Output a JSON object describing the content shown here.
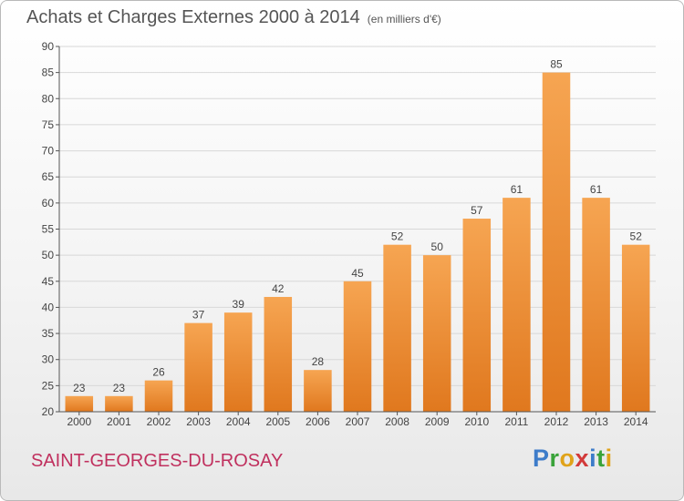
{
  "header": {
    "title": "Achats et Charges Externes 2000 à 2014",
    "unit": "(en milliers d'€)"
  },
  "footer": {
    "place": "SAINT-GEORGES-DU-ROSAY"
  },
  "logo": {
    "text": "Proxiti",
    "letters": [
      {
        "ch": "P",
        "color": "#3d7cc9"
      },
      {
        "ch": "r",
        "color": "#3aa33a"
      },
      {
        "ch": "o",
        "color": "#e0a31a"
      },
      {
        "ch": "x",
        "color": "#d23a3a"
      },
      {
        "ch": "i",
        "color": "#3d7cc9"
      },
      {
        "ch": "t",
        "color": "#3aa33a"
      },
      {
        "ch": "i",
        "color": "#e0a31a"
      }
    ]
  },
  "colors": {
    "bar_top": "#f6a552",
    "bar_bottom": "#e0781e",
    "grid": "#d8d8d8",
    "axis": "#555555",
    "text": "#444444"
  },
  "chart_data": {
    "type": "bar",
    "title": "Achats et Charges Externes 2000 à 2014",
    "subtitle": "(en milliers d'€)",
    "categories": [
      "2000",
      "2001",
      "2002",
      "2003",
      "2004",
      "2005",
      "2006",
      "2007",
      "2008",
      "2009",
      "2010",
      "2011",
      "2012",
      "2013",
      "2014"
    ],
    "values": [
      23,
      23,
      26,
      37,
      39,
      42,
      28,
      45,
      52,
      50,
      57,
      61,
      85,
      61,
      52
    ],
    "ylim": [
      20,
      90
    ],
    "yticks": [
      20,
      25,
      30,
      35,
      40,
      45,
      50,
      55,
      60,
      65,
      70,
      75,
      80,
      85,
      90
    ],
    "grid": true,
    "data_labels": true
  }
}
